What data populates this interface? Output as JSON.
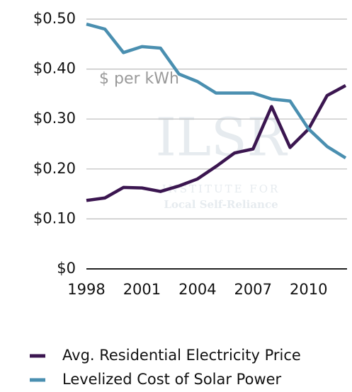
{
  "chart_data": {
    "type": "line",
    "annotation": "$ per kWh",
    "watermark": {
      "logo": "ILSR",
      "line1": "INSTITUTE FOR",
      "line2": "Local Self-Reliance"
    },
    "x": [
      1998,
      1999,
      2000,
      2001,
      2002,
      2003,
      2004,
      2005,
      2006,
      2007,
      2008,
      2009,
      2010,
      2011,
      2012
    ],
    "xlim": [
      1998,
      2012
    ],
    "xticks": [
      1998,
      2001,
      2004,
      2007,
      2010
    ],
    "ylim": [
      0,
      0.5
    ],
    "yticks": [
      {
        "value": 0,
        "label": "$0"
      },
      {
        "value": 0.1,
        "label": "$0.10"
      },
      {
        "value": 0.2,
        "label": "$0.20"
      },
      {
        "value": 0.3,
        "label": "$0.30"
      },
      {
        "value": 0.4,
        "label": "$0.40"
      },
      {
        "value": 0.5,
        "label": "$0.50"
      }
    ],
    "grid": true,
    "legend": "bottom",
    "series": [
      {
        "name": "Avg. Residential Electricity Price",
        "color": "#3b1650",
        "values": [
          0.137,
          0.142,
          0.163,
          0.162,
          0.155,
          0.166,
          0.18,
          0.205,
          0.232,
          0.24,
          0.325,
          0.243,
          0.28,
          0.347,
          0.367
        ]
      },
      {
        "name": "Levelized Cost of Solar Power",
        "color": "#4a8fb0",
        "values": [
          0.49,
          0.48,
          0.433,
          0.445,
          0.442,
          0.39,
          0.375,
          0.352,
          0.352,
          0.352,
          0.34,
          0.336,
          0.28,
          0.245,
          0.222
        ]
      }
    ]
  }
}
